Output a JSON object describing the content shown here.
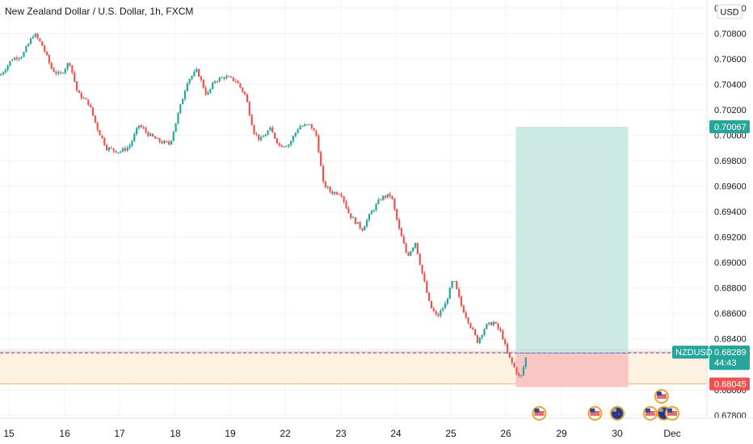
{
  "header": {
    "symbol_title": "New Zealand Dollar / U.S. Dollar, 1h, FXCM",
    "currency_button": "USD"
  },
  "colors": {
    "bull": "#26a69a",
    "bear": "#ef5350",
    "profit_zone": "#cde9e3",
    "loss_zone": "#f9c6c4",
    "band_fill": "#fdf1e2",
    "band_line": "#f4a582",
    "grid": "#f1f3f6",
    "axis_text": "#131722",
    "dashed_line": "#5b6ee1"
  },
  "chart_data": {
    "type": "candlestick",
    "title": "New Zealand Dollar / U.S. Dollar, 1h, FXCM",
    "ylim": [
      0.6777,
      0.71
    ],
    "y_ticks": [
      "0.71000",
      "0.70800",
      "0.70600",
      "0.70400",
      "0.70200",
      "0.70000",
      "0.69800",
      "0.69600",
      "0.69400",
      "0.69200",
      "0.69000",
      "0.68800",
      "0.68600",
      "0.68400",
      "0.68200",
      "0.68000",
      "0.67800"
    ],
    "x_ticks": [
      "15",
      "16",
      "17",
      "18",
      "19",
      "22",
      "23",
      "24",
      "25",
      "26",
      "29",
      "30",
      "Dec"
    ],
    "grid": true,
    "price_path": [
      [
        0,
        0.7047
      ],
      [
        15,
        0.706
      ],
      [
        28,
        0.7063
      ],
      [
        42,
        0.708
      ],
      [
        52,
        0.7071
      ],
      [
        64,
        0.7052
      ],
      [
        74,
        0.7047
      ],
      [
        86,
        0.7058
      ],
      [
        96,
        0.7033
      ],
      [
        110,
        0.7025
      ],
      [
        120,
        0.7006
      ],
      [
        132,
        0.699
      ],
      [
        148,
        0.6987
      ],
      [
        160,
        0.6991
      ],
      [
        172,
        0.7008
      ],
      [
        185,
        0.7
      ],
      [
        198,
        0.6995
      ],
      [
        210,
        0.6993
      ],
      [
        222,
        0.702
      ],
      [
        232,
        0.7043
      ],
      [
        244,
        0.7051
      ],
      [
        256,
        0.7031
      ],
      [
        266,
        0.7043
      ],
      [
        278,
        0.7046
      ],
      [
        292,
        0.7043
      ],
      [
        304,
        0.7031
      ],
      [
        314,
        0.7003
      ],
      [
        322,
        0.6996
      ],
      [
        334,
        0.7005
      ],
      [
        346,
        0.6992
      ],
      [
        358,
        0.6993
      ],
      [
        370,
        0.7007
      ],
      [
        384,
        0.7008
      ],
      [
        392,
        0.6999
      ],
      [
        400,
        0.6962
      ],
      [
        410,
        0.6955
      ],
      [
        422,
        0.6955
      ],
      [
        432,
        0.6938
      ],
      [
        448,
        0.6926
      ],
      [
        460,
        0.694
      ],
      [
        472,
        0.6951
      ],
      [
        484,
        0.6953
      ],
      [
        494,
        0.6926
      ],
      [
        504,
        0.6905
      ],
      [
        514,
        0.6916
      ],
      [
        522,
        0.6893
      ],
      [
        532,
        0.6866
      ],
      [
        541,
        0.6857
      ],
      [
        551,
        0.6867
      ],
      [
        561,
        0.6887
      ],
      [
        571,
        0.6866
      ],
      [
        581,
        0.6852
      ],
      [
        591,
        0.6838
      ],
      [
        601,
        0.685
      ],
      [
        611,
        0.6853
      ],
      [
        621,
        0.6844
      ],
      [
        628,
        0.6828
      ],
      [
        636,
        0.6818
      ],
      [
        644,
        0.6808
      ],
      [
        652,
        0.6828
      ]
    ],
    "horizontal_levels": [
      {
        "price": 0.68296,
        "label": "0.68296",
        "role": "band-upper"
      },
      {
        "price": 0.68289,
        "label": "0.68289",
        "role": "current",
        "symbol": "NZDUSD",
        "countdown": "44:43"
      },
      {
        "price": 0.68045,
        "label": "0.68045",
        "role": "band-lower"
      }
    ],
    "long_position": {
      "entry": 0.68289,
      "target": 0.70067,
      "target_label": "0.70067",
      "stop": 0.6802,
      "start_date_index": 9.18,
      "end_date_index": 11.2
    },
    "event_markers": [
      {
        "date_index": 9.6,
        "flags": [
          "us"
        ],
        "stacked": false
      },
      {
        "date_index": 10.6,
        "flags": [
          "us"
        ],
        "stacked": false
      },
      {
        "date_index": 11.0,
        "flags": [
          "nz"
        ],
        "stacked": false
      },
      {
        "date_index": 11.6,
        "flags": [
          "us",
          "us"
        ],
        "stacked": true
      },
      {
        "date_index": 11.85,
        "flags": [
          "nz"
        ],
        "stacked": false
      },
      {
        "date_index": 12.55,
        "flags": [
          "us"
        ],
        "stacked": false
      }
    ]
  }
}
